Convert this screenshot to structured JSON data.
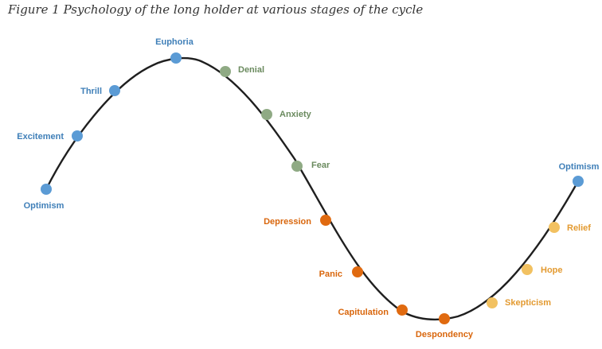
{
  "figure": {
    "title": "Figure 1 Psychology of the long holder at various stages of the cycle"
  },
  "colors": {
    "curve": "#1f1f1f",
    "blue": "#5b9bd5",
    "blue_text": "#3f7fb8",
    "green": "#8faa84",
    "green_text": "#6a8a5e",
    "dark_orange": "#e06a10",
    "dark_orange_text": "#d9660c",
    "light_orange": "#f2c161",
    "light_orange_text": "#e39a30"
  },
  "stages": [
    {
      "label": "Optimism",
      "color": "blue"
    },
    {
      "label": "Excitement",
      "color": "blue"
    },
    {
      "label": "Thrill",
      "color": "blue"
    },
    {
      "label": "Euphoria",
      "color": "blue"
    },
    {
      "label": "Denial",
      "color": "green"
    },
    {
      "label": "Anxiety",
      "color": "green"
    },
    {
      "label": "Fear",
      "color": "green"
    },
    {
      "label": "Depression",
      "color": "dark_orange"
    },
    {
      "label": "Panic",
      "color": "dark_orange"
    },
    {
      "label": "Capitulation",
      "color": "dark_orange"
    },
    {
      "label": "Despondency",
      "color": "dark_orange"
    },
    {
      "label": "Skepticism",
      "color": "light_orange"
    },
    {
      "label": "Hope",
      "color": "light_orange"
    },
    {
      "label": "Relief",
      "color": "light_orange"
    },
    {
      "label": "Optimism",
      "color": "blue"
    }
  ]
}
